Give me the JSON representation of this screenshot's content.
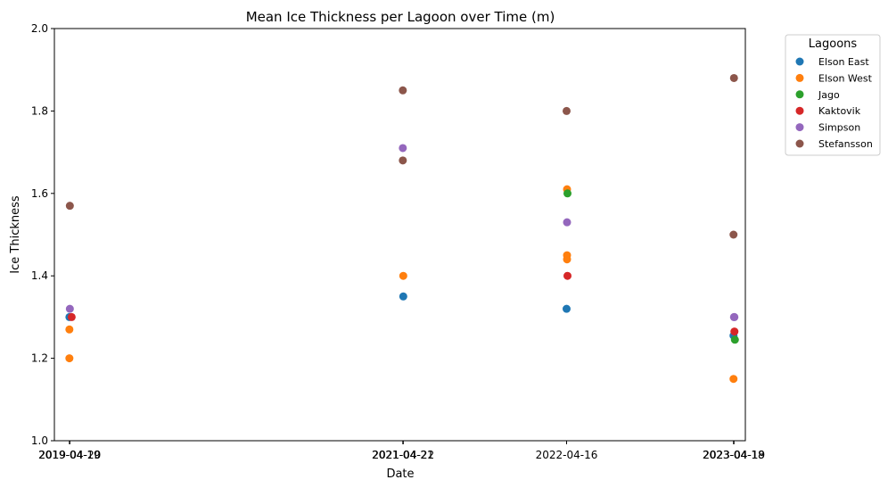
{
  "chart_data": {
    "type": "scatter",
    "title": "Mean Ice Thickness per Lagoon over Time (m)",
    "xlabel": "Date",
    "ylabel": "Ice Thickness",
    "ylim": [
      1.0,
      2.0
    ],
    "yticks": [
      "1.0",
      "1.2",
      "1.4",
      "1.6",
      "1.8",
      "2.0"
    ],
    "xlim": [
      "2019-03-17",
      "2023-05-14"
    ],
    "xtick_labels": [
      {
        "date": "2019-04-19",
        "label": "2019-04-19"
      },
      {
        "date": "2019-04-20",
        "label": "2019-04-20"
      },
      {
        "date": "2021-04-21",
        "label": "2021-04-21"
      },
      {
        "date": "2021-04-22",
        "label": "2021-04-22"
      },
      {
        "date": "2022-04-16",
        "label": "2022-04-16"
      },
      {
        "date": "2023-04-18",
        "label": "2023-04-18"
      },
      {
        "date": "2023-04-19",
        "label": "2023-04-19"
      }
    ],
    "grid": false,
    "legend": {
      "title": "Lagoons",
      "position": "outside-top-right"
    },
    "series": [
      {
        "name": "Elson East",
        "color": "#1f77b4",
        "points": [
          {
            "x": "2019-04-19",
            "y": 1.3
          },
          {
            "x": "2021-04-22",
            "y": 1.35
          },
          {
            "x": "2022-04-16",
            "y": 1.32
          },
          {
            "x": "2023-04-18",
            "y": 1.255
          }
        ]
      },
      {
        "name": "Elson West",
        "color": "#ff7f0e",
        "points": [
          {
            "x": "2019-04-19",
            "y": 1.27
          },
          {
            "x": "2019-04-19",
            "y": 1.2
          },
          {
            "x": "2021-04-22",
            "y": 1.4
          },
          {
            "x": "2022-04-17",
            "y": 1.61
          },
          {
            "x": "2022-04-17",
            "y": 1.45
          },
          {
            "x": "2022-04-17",
            "y": 1.44
          },
          {
            "x": "2023-04-18",
            "y": 1.15
          }
        ]
      },
      {
        "name": "Jago",
        "color": "#2ca02c",
        "points": [
          {
            "x": "2022-04-18",
            "y": 1.6
          },
          {
            "x": "2023-04-21",
            "y": 1.245
          }
        ]
      },
      {
        "name": "Kaktovik",
        "color": "#d62728",
        "points": [
          {
            "x": "2019-04-24",
            "y": 1.3
          },
          {
            "x": "2022-04-18",
            "y": 1.4
          },
          {
            "x": "2023-04-20",
            "y": 1.265
          }
        ]
      },
      {
        "name": "Simpson",
        "color": "#9467bd",
        "points": [
          {
            "x": "2019-04-20",
            "y": 1.32
          },
          {
            "x": "2021-04-21",
            "y": 1.71
          },
          {
            "x": "2022-04-17",
            "y": 1.53
          },
          {
            "x": "2023-04-19",
            "y": 1.3
          },
          {
            "x": "2023-04-20",
            "y": 1.3
          }
        ]
      },
      {
        "name": "Stefansson",
        "color": "#8c564b",
        "points": [
          {
            "x": "2019-04-20",
            "y": 1.57
          },
          {
            "x": "2021-04-21",
            "y": 1.85
          },
          {
            "x": "2021-04-21",
            "y": 1.68
          },
          {
            "x": "2022-04-16",
            "y": 1.8
          },
          {
            "x": "2023-04-19",
            "y": 1.88
          },
          {
            "x": "2023-04-18",
            "y": 1.5
          }
        ]
      }
    ]
  }
}
